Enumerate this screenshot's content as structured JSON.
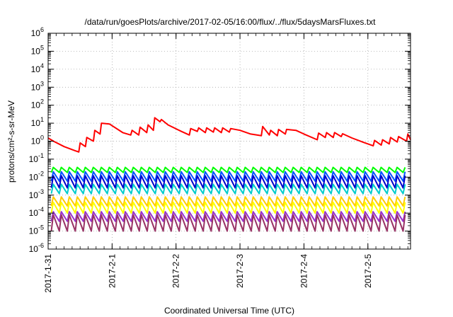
{
  "chart_data": {
    "type": "line",
    "title": "/data/run/goesPlots/archive/2017-02-05/16:00/flux/../flux/5daysMarsFluxes.txt",
    "xlabel": "Coordinated Universal Time (UTC)",
    "ylabel": "protons/cm²-s-sr-MeV",
    "y_scale": "log",
    "ylim": [
      1e-06,
      1000000
    ],
    "xlim": [
      "2017-01-31 00:00",
      "2017-02-05 16:00"
    ],
    "grid": true,
    "legend": "none",
    "y_ticks": [
      {
        "base": "10",
        "exp": "6"
      },
      {
        "base": "10",
        "exp": "5"
      },
      {
        "base": "10",
        "exp": "4"
      },
      {
        "base": "10",
        "exp": "3"
      },
      {
        "base": "10",
        "exp": "2"
      },
      {
        "base": "10",
        "exp": "1"
      },
      {
        "base": "10",
        "exp": "0"
      },
      {
        "base": "10",
        "exp": "-1"
      },
      {
        "base": "10",
        "exp": "-2"
      },
      {
        "base": "10",
        "exp": "-3"
      },
      {
        "base": "10",
        "exp": "-4"
      },
      {
        "base": "10",
        "exp": "-5"
      },
      {
        "base": "10",
        "exp": "-6"
      }
    ],
    "x_ticks": [
      "2017-1-31",
      "2017-2-1",
      "2017-2-2",
      "2017-2-3",
      "2017-2-4",
      "2017-2-5"
    ],
    "series": [
      {
        "color": "#ff0000",
        "x": [
          "2017-01-31 00:00",
          "2017-01-31 02:00",
          "2017-01-31 06:00",
          "2017-01-31 10:00",
          "2017-01-31 11:30",
          "2017-01-31 12:00",
          "2017-01-31 14:00",
          "2017-01-31 14:30",
          "2017-01-31 17:00",
          "2017-01-31 17:30",
          "2017-01-31 19:30",
          "2017-01-31 20:00",
          "2017-01-31 23:00",
          "2017-02-01 04:00",
          "2017-02-01 07:00",
          "2017-02-01 07:30",
          "2017-02-01 10:00",
          "2017-02-01 10:30",
          "2017-02-01 13:00",
          "2017-02-01 13:30",
          "2017-02-01 15:30",
          "2017-02-01 16:00",
          "2017-02-01 18:00",
          "2017-02-01 18:30",
          "2017-02-01 21:00",
          "2017-02-02 02:00",
          "2017-02-02 05:00",
          "2017-02-02 05:30",
          "2017-02-02 08:00",
          "2017-02-02 08:30",
          "2017-02-02 11:00",
          "2017-02-02 11:30",
          "2017-02-02 14:00",
          "2017-02-02 14:30",
          "2017-02-02 17:00",
          "2017-02-02 17:30",
          "2017-02-02 20:00",
          "2017-02-02 20:30",
          "2017-02-03 00:00",
          "2017-02-03 04:00",
          "2017-02-03 08:00",
          "2017-02-03 08:30",
          "2017-02-03 11:00",
          "2017-02-03 11:30",
          "2017-02-03 14:00",
          "2017-02-03 14:30",
          "2017-02-03 17:00",
          "2017-02-03 17:30",
          "2017-02-03 21:00",
          "2017-02-04 00:00",
          "2017-02-04 05:00",
          "2017-02-04 05:30",
          "2017-02-04 08:00",
          "2017-02-04 08:30",
          "2017-02-04 11:00",
          "2017-02-04 11:30",
          "2017-02-04 14:00",
          "2017-02-04 14:30",
          "2017-02-04 18:00",
          "2017-02-04 22:00",
          "2017-02-05 02:00",
          "2017-02-05 02:30",
          "2017-02-05 05:00",
          "2017-02-05 05:30",
          "2017-02-05 08:00",
          "2017-02-05 08:30",
          "2017-02-05 11:00",
          "2017-02-05 11:30",
          "2017-02-05 14:30",
          "2017-02-05 15:00",
          "2017-02-05 16:00"
        ],
        "values": [
          1.5,
          1.0,
          0.5,
          0.3,
          0.25,
          0.8,
          0.5,
          1.6,
          1.0,
          4.0,
          2.5,
          10,
          9,
          3.0,
          2.2,
          4.0,
          2.2,
          6.0,
          3.0,
          8.0,
          4.0,
          20,
          12,
          16,
          8,
          3.5,
          2.2,
          5.0,
          3.5,
          5.5,
          3.0,
          5.5,
          3.2,
          5.5,
          3.0,
          5.5,
          3.2,
          5.0,
          4.0,
          2.5,
          2.0,
          6.5,
          2.2,
          4.0,
          2.0,
          4.5,
          2.5,
          4.5,
          4.0,
          2.5,
          1.2,
          2.8,
          1.6,
          3.0,
          1.6,
          3.0,
          1.8,
          2.6,
          1.5,
          0.9,
          0.55,
          1.1,
          0.6,
          1.2,
          0.7,
          1.6,
          0.9,
          1.8,
          1.0,
          2.5,
          1.2
        ]
      },
      {
        "color": "#00ff00",
        "base": 0.018,
        "peak": 0.035
      },
      {
        "color": "#0055ff",
        "base": 0.006,
        "peak": 0.02
      },
      {
        "color": "#0000cc",
        "base": 0.0025,
        "peak": 0.012
      },
      {
        "color": "#00cccc",
        "base": 0.0012,
        "peak": 0.004
      },
      {
        "color": "#ffcc00",
        "base": 0.00025,
        "peak": 0.0008
      },
      {
        "color": "#ffff00",
        "base": 0.0001,
        "peak": 0.0004
      },
      {
        "color": "#9933cc",
        "base": 3.5e-05,
        "peak": 0.00012
      },
      {
        "color": "#993366",
        "base": 1e-05,
        "peak": 8e-05
      }
    ]
  }
}
